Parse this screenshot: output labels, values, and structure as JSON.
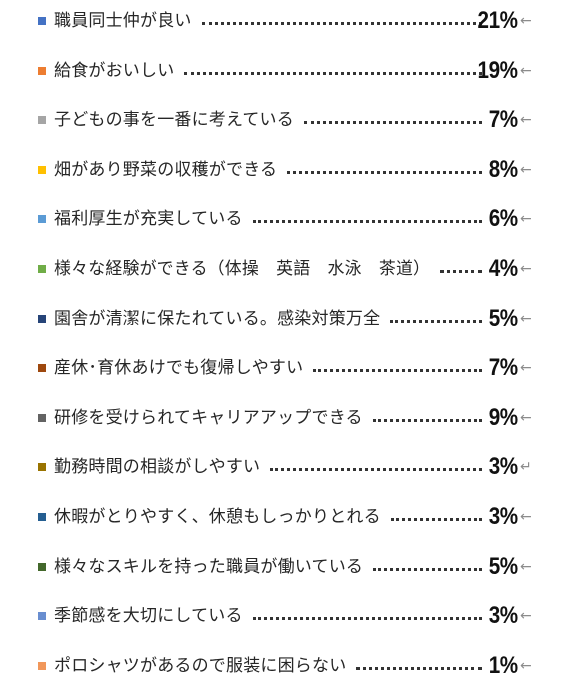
{
  "chart_data": {
    "type": "table",
    "items": [
      {
        "label": "職員同士仲が良い",
        "value": 21,
        "display": "21%",
        "mark": "←",
        "color": "#4472C4"
      },
      {
        "label": "給食がおいしい",
        "value": 19,
        "display": "19%",
        "mark": "←",
        "color": "#ED7D31"
      },
      {
        "label": "子どもの事を一番に考えている",
        "value": 7,
        "display": "7%",
        "mark": "←",
        "color": "#A5A5A5"
      },
      {
        "label": "畑があり野菜の収穫ができる",
        "value": 8,
        "display": "8%",
        "mark": "←",
        "color": "#FFC000"
      },
      {
        "label": "福利厚生が充実している",
        "value": 6,
        "display": "6%",
        "mark": "←",
        "color": "#5B9BD5"
      },
      {
        "label": "様々な経験ができる（体操　英語　水泳　茶道）",
        "value": 4,
        "display": "4%",
        "mark": "←",
        "color": "#70AD47"
      },
      {
        "label": "園舎が清潔に保たれている。感染対策万全",
        "value": 5,
        "display": "5%",
        "mark": "←",
        "color": "#264478"
      },
      {
        "label": "産休･育休あけでも復帰しやすい",
        "value": 7,
        "display": "7%",
        "mark": "←",
        "color": "#9E480E"
      },
      {
        "label": "研修を受けられてキャリアアップできる",
        "value": 9,
        "display": "9%",
        "mark": "←",
        "color": "#636363"
      },
      {
        "label": "勤務時間の相談がしやすい",
        "value": 3,
        "display": "3%",
        "mark": "↵",
        "color": "#997300"
      },
      {
        "label": "休暇がとりやすく、休憩もしっかりとれる",
        "value": 3,
        "display": "3%",
        "mark": "←",
        "color": "#255E91"
      },
      {
        "label": "様々なスキルを持った職員が働いている",
        "value": 5,
        "display": "5%",
        "mark": "←",
        "color": "#43682B"
      },
      {
        "label": "季節感を大切にしている",
        "value": 3,
        "display": "3%",
        "mark": "←",
        "color": "#698ED0"
      },
      {
        "label": "ポロシャツがあるので服装に困らない",
        "value": 1,
        "display": "1%",
        "mark": "←",
        "color": "#F1975A"
      }
    ]
  }
}
